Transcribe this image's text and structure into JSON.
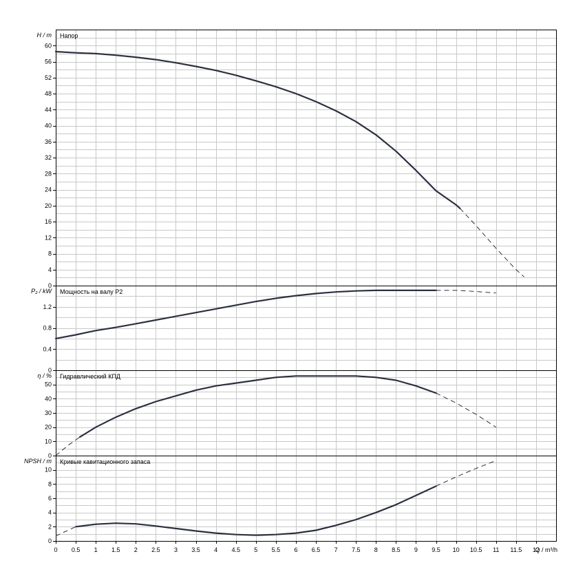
{
  "chart_data": [
    {
      "type": "line",
      "title": "Напор",
      "ylabel": "H / m",
      "ylim": [
        0,
        64
      ],
      "yticks": [
        0,
        4,
        8,
        12,
        16,
        20,
        24,
        28,
        32,
        36,
        40,
        44,
        48,
        52,
        56,
        60
      ],
      "series": [
        {
          "line": "solid",
          "x": [
            0,
            0.5,
            1,
            1.5,
            2,
            2.5,
            3,
            3.5,
            4,
            4.5,
            5,
            5.5,
            6,
            6.5,
            7,
            7.5,
            8,
            8.5,
            9,
            9.5,
            10,
            10.1
          ],
          "y": [
            58.5,
            58.2,
            58.0,
            57.6,
            57.1,
            56.5,
            55.7,
            54.8,
            53.8,
            52.6,
            51.2,
            49.7,
            48.0,
            46.0,
            43.7,
            41.0,
            37.7,
            33.6,
            28.8,
            23.7,
            20.2,
            19.3
          ]
        },
        {
          "line": "dashed",
          "x": [
            10.1,
            10.5,
            11,
            11.5,
            11.7
          ],
          "y": [
            19.3,
            15.0,
            9.3,
            4.0,
            2.2
          ]
        }
      ]
    },
    {
      "type": "line",
      "title": "Мощность на валу P2",
      "ylabel": "P₂ / kW",
      "ylim": [
        0,
        1.6
      ],
      "yticks": [
        "0",
        "0.4",
        "0.8",
        "1.2"
      ],
      "series": [
        {
          "line": "solid",
          "x": [
            0,
            0.5,
            1,
            1.5,
            2,
            2.5,
            3,
            3.5,
            4,
            4.5,
            5,
            5.5,
            6,
            6.5,
            7,
            7.5,
            8,
            8.5,
            9,
            9.5
          ],
          "y": [
            0.6,
            0.67,
            0.75,
            0.81,
            0.88,
            0.95,
            1.02,
            1.09,
            1.16,
            1.23,
            1.3,
            1.36,
            1.41,
            1.45,
            1.48,
            1.5,
            1.51,
            1.51,
            1.51,
            1.51
          ]
        },
        {
          "line": "dashed",
          "x": [
            9.5,
            10,
            10.5,
            11
          ],
          "y": [
            1.51,
            1.51,
            1.49,
            1.46
          ]
        }
      ]
    },
    {
      "type": "line",
      "title": "Гидравлический КПД",
      "ylabel": "η / %",
      "ylim": [
        0,
        60
      ],
      "yticks": [
        0,
        10,
        20,
        30,
        40,
        50
      ],
      "series": [
        {
          "line": "solid",
          "x": [
            0.6,
            1,
            1.5,
            2,
            2.5,
            3,
            3.5,
            4,
            4.5,
            5,
            5.5,
            6,
            6.5,
            7,
            7.5,
            8,
            8.5,
            9,
            9.5
          ],
          "y": [
            13,
            20,
            27,
            33,
            38,
            42,
            46,
            49,
            51,
            53,
            55,
            56,
            56,
            56,
            56,
            55,
            53,
            49,
            44
          ]
        },
        {
          "line": "dashed",
          "x": [
            0,
            0.3,
            0.6
          ],
          "y": [
            0,
            7,
            13
          ]
        },
        {
          "line": "dashed",
          "x": [
            9.5,
            10,
            10.5,
            11
          ],
          "y": [
            44,
            37,
            29,
            20
          ]
        }
      ]
    },
    {
      "type": "line",
      "title": "Кривые кавитационного запаса",
      "ylabel": "NPSH / m",
      "ylim": [
        0,
        12
      ],
      "yticks": [
        0,
        2,
        4,
        6,
        8,
        10
      ],
      "series": [
        {
          "line": "solid",
          "x": [
            0.5,
            1,
            1.5,
            2,
            2.5,
            3,
            3.5,
            4,
            4.5,
            5,
            5.5,
            6,
            6.5,
            7,
            7.5,
            8,
            8.5,
            9,
            9.5
          ],
          "y": [
            2.0,
            2.35,
            2.5,
            2.4,
            2.1,
            1.75,
            1.4,
            1.1,
            0.9,
            0.8,
            0.9,
            1.1,
            1.5,
            2.2,
            3.0,
            4.0,
            5.1,
            6.4,
            7.7
          ]
        },
        {
          "line": "dashed",
          "x": [
            0,
            0.5
          ],
          "y": [
            0.7,
            2.0
          ]
        },
        {
          "line": "dashed",
          "x": [
            9.5,
            10,
            10.5,
            11
          ],
          "y": [
            7.7,
            9.0,
            10.2,
            11.3
          ]
        }
      ]
    }
  ],
  "x_axis": {
    "label": "Q / m³/h",
    "xlim": [
      0,
      12.5
    ],
    "ticks": [
      "0",
      "0.5",
      "1",
      "1.5",
      "2",
      "2.5",
      "3",
      "3.5",
      "4",
      "4.5",
      "5",
      "5.5",
      "6",
      "6.5",
      "7",
      "7.5",
      "8",
      "8.5",
      "9",
      "9.5",
      "10",
      "10.5",
      "11",
      "11.5",
      "12"
    ]
  },
  "grid": true,
  "colors": {
    "curve": "#2b3040",
    "grid": "#c8c8c8",
    "frame": "#000000"
  }
}
